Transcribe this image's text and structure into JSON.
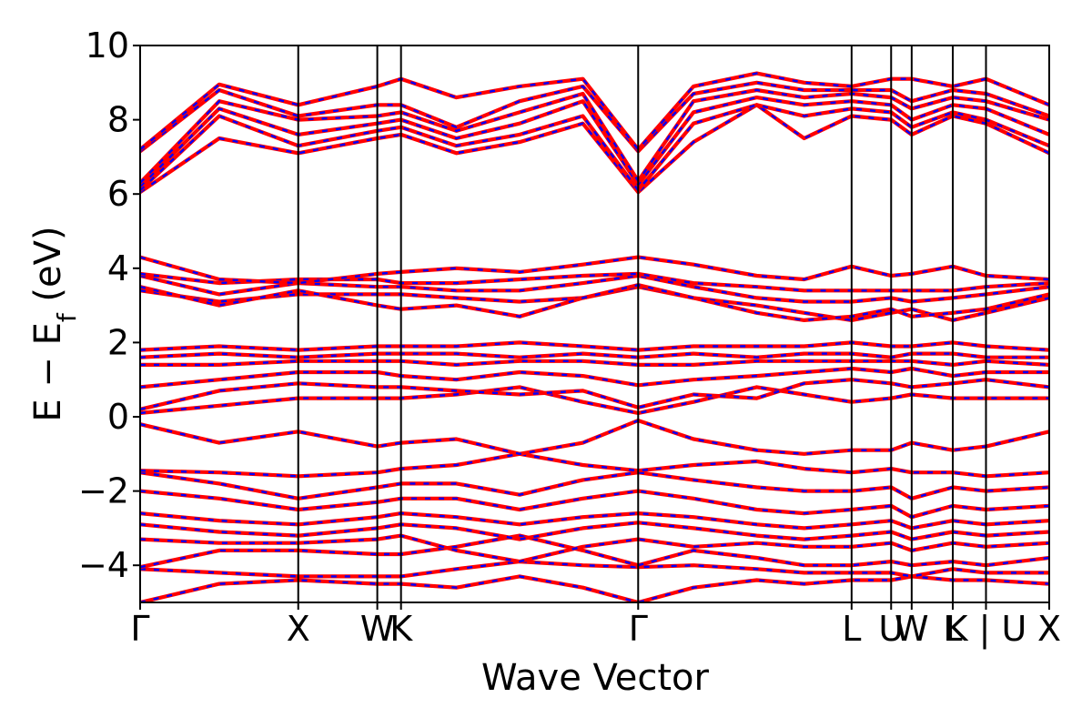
{
  "chart_data": {
    "type": "line",
    "xlabel": "Wave Vector",
    "ylabel_parts": {
      "main": "E − E",
      "sub": "f",
      "unit": " (eV)"
    },
    "ylim": [
      -5,
      10
    ],
    "yticks": [
      {
        "value": 10,
        "label": "10"
      },
      {
        "value": 8,
        "label": "8"
      },
      {
        "value": 6,
        "label": "6"
      },
      {
        "value": 4,
        "label": "4"
      },
      {
        "value": 2,
        "label": "2"
      },
      {
        "value": 0,
        "label": "0"
      },
      {
        "value": -2,
        "label": "−2"
      },
      {
        "value": -4,
        "label": "−4"
      }
    ],
    "xlim": [
      0,
      5.75
    ],
    "high_symmetry_points": [
      {
        "label": "Γ",
        "x": 0.0
      },
      {
        "label": "X",
        "x": 1.0
      },
      {
        "label": "W",
        "x": 1.5
      },
      {
        "label": "K",
        "x": 1.65
      },
      {
        "label": "Γ",
        "x": 3.15
      },
      {
        "label": "L",
        "x": 4.5
      },
      {
        "label": "U",
        "x": 4.75
      },
      {
        "label": "W",
        "x": 4.88
      },
      {
        "label": "L",
        "x": 5.14
      },
      {
        "label": "K | U",
        "x": 5.35
      },
      {
        "label": "X",
        "x": 5.75
      }
    ],
    "colors": {
      "band_solid": "#ff0000",
      "band_dashed": "#0000ff",
      "kpath_lines": "#000000"
    },
    "grid": false,
    "series": [
      {
        "x": [
          0,
          0.5,
          1.0,
          1.5,
          1.65,
          2.0,
          2.4,
          2.8,
          3.15,
          3.5,
          3.9,
          4.2,
          4.5,
          4.75,
          4.88,
          5.14,
          5.35,
          5.75
        ],
        "y": [
          -5.0,
          -4.5,
          -4.4,
          -4.5,
          -4.5,
          -4.6,
          -4.3,
          -4.6,
          -5.0,
          -4.6,
          -4.4,
          -4.5,
          -4.4,
          -4.4,
          -4.3,
          -4.4,
          -4.4,
          -4.5
        ]
      },
      {
        "x": [
          0,
          0.5,
          1.0,
          1.5,
          1.65,
          2.0,
          2.4,
          2.8,
          3.15,
          3.5,
          3.9,
          4.2,
          4.5,
          4.75,
          4.88,
          5.14,
          5.35,
          5.75
        ],
        "y": [
          -4.1,
          -4.2,
          -4.3,
          -4.3,
          -4.3,
          -4.1,
          -3.9,
          -4.0,
          -4.05,
          -4.0,
          -4.1,
          -4.2,
          -4.2,
          -4.2,
          -4.3,
          -4.1,
          -4.2,
          -4.2
        ]
      },
      {
        "x": [
          0,
          0.5,
          1.0,
          1.5,
          1.65,
          2.0,
          2.4,
          2.8,
          3.15,
          3.5,
          3.9,
          4.2,
          4.5,
          4.75,
          4.88,
          5.14,
          5.35,
          5.75
        ],
        "y": [
          -4.05,
          -3.6,
          -3.6,
          -3.7,
          -3.7,
          -3.5,
          -3.2,
          -3.6,
          -4.0,
          -3.6,
          -3.8,
          -4.0,
          -4.0,
          -3.9,
          -4.0,
          -3.9,
          -4.0,
          -3.8
        ]
      },
      {
        "x": [
          0,
          0.5,
          1.0,
          1.5,
          1.65,
          2.0,
          2.4,
          2.8,
          3.15,
          3.5,
          3.9,
          4.2,
          4.5,
          4.75,
          4.88,
          5.14,
          5.35,
          5.75
        ],
        "y": [
          -3.3,
          -3.4,
          -3.4,
          -3.3,
          -3.2,
          -3.6,
          -3.9,
          -3.5,
          -3.3,
          -3.5,
          -3.4,
          -3.5,
          -3.5,
          -3.4,
          -3.6,
          -3.4,
          -3.5,
          -3.4
        ]
      },
      {
        "x": [
          0,
          0.5,
          1.0,
          1.5,
          1.65,
          2.0,
          2.4,
          2.8,
          3.15,
          3.5,
          3.9,
          4.2,
          4.5,
          4.75,
          4.88,
          5.14,
          5.35,
          5.75
        ],
        "y": [
          -2.9,
          -3.1,
          -3.2,
          -3.0,
          -2.9,
          -3.0,
          -3.3,
          -3.0,
          -2.85,
          -3.0,
          -3.2,
          -3.3,
          -3.2,
          -3.1,
          -3.3,
          -3.1,
          -3.2,
          -3.1
        ]
      },
      {
        "x": [
          0,
          0.5,
          1.0,
          1.5,
          1.65,
          2.0,
          2.4,
          2.8,
          3.15,
          3.5,
          3.9,
          4.2,
          4.5,
          4.75,
          4.88,
          5.14,
          5.35,
          5.75
        ],
        "y": [
          -2.6,
          -2.8,
          -2.9,
          -2.7,
          -2.6,
          -2.7,
          -2.9,
          -2.7,
          -2.6,
          -2.7,
          -2.9,
          -3.0,
          -2.9,
          -2.8,
          -3.0,
          -2.8,
          -2.9,
          -2.8
        ]
      },
      {
        "x": [
          0,
          0.5,
          1.0,
          1.5,
          1.65,
          2.0,
          2.4,
          2.8,
          3.15,
          3.5,
          3.9,
          4.2,
          4.5,
          4.75,
          4.88,
          5.14,
          5.35,
          5.75
        ],
        "y": [
          -2.0,
          -2.2,
          -2.5,
          -2.3,
          -2.2,
          -2.2,
          -2.5,
          -2.2,
          -2.0,
          -2.2,
          -2.5,
          -2.6,
          -2.5,
          -2.4,
          -2.7,
          -2.4,
          -2.5,
          -2.4
        ]
      },
      {
        "x": [
          0,
          0.5,
          1.0,
          1.5,
          1.65,
          2.0,
          2.4,
          2.8,
          3.15,
          3.5,
          3.9,
          4.2,
          4.5,
          4.75,
          4.88,
          5.14,
          5.35,
          5.75
        ],
        "y": [
          -1.5,
          -1.8,
          -2.2,
          -1.9,
          -1.8,
          -1.8,
          -2.1,
          -1.7,
          -1.5,
          -1.7,
          -1.9,
          -2.0,
          -2.0,
          -1.9,
          -2.2,
          -1.9,
          -2.0,
          -1.9
        ]
      },
      {
        "x": [
          0,
          0.5,
          1.0,
          1.5,
          1.65,
          2.0,
          2.4,
          2.8,
          3.15,
          3.5,
          3.9,
          4.2,
          4.5,
          4.75,
          4.88,
          5.14,
          5.35,
          5.75
        ],
        "y": [
          -1.45,
          -1.5,
          -1.6,
          -1.5,
          -1.4,
          -1.3,
          -1.0,
          -1.3,
          -1.45,
          -1.3,
          -1.2,
          -1.4,
          -1.5,
          -1.4,
          -1.5,
          -1.5,
          -1.6,
          -1.5
        ]
      },
      {
        "x": [
          0,
          0.5,
          1.0,
          1.5,
          1.65,
          2.0,
          2.4,
          2.8,
          3.15,
          3.5,
          3.9,
          4.2,
          4.5,
          4.75,
          4.88,
          5.14,
          5.35,
          5.75
        ],
        "y": [
          -0.2,
          -0.7,
          -0.4,
          -0.8,
          -0.7,
          -0.6,
          -1.0,
          -0.7,
          -0.1,
          -0.6,
          -0.9,
          -1.0,
          -0.9,
          -0.9,
          -0.7,
          -0.9,
          -0.8,
          -0.4
        ]
      },
      {
        "x": [
          0,
          0.5,
          1.0,
          1.5,
          1.65,
          2.0,
          2.4,
          2.8,
          3.15,
          3.5,
          3.9,
          4.2,
          4.5,
          4.75,
          4.88,
          5.14,
          5.35,
          5.75
        ],
        "y": [
          0.1,
          0.3,
          0.5,
          0.5,
          0.5,
          0.6,
          0.8,
          0.4,
          0.1,
          0.4,
          0.8,
          0.6,
          0.4,
          0.5,
          0.6,
          0.5,
          0.5,
          0.5
        ]
      },
      {
        "x": [
          0,
          0.5,
          1.0,
          1.5,
          1.65,
          2.0,
          2.4,
          2.8,
          3.15,
          3.5,
          3.9,
          4.2,
          4.5,
          4.75,
          4.88,
          5.14,
          5.35,
          5.75
        ],
        "y": [
          0.2,
          0.7,
          0.9,
          0.8,
          0.8,
          0.7,
          0.6,
          0.7,
          0.25,
          0.6,
          0.5,
          0.9,
          1.0,
          0.9,
          0.8,
          0.9,
          1.0,
          0.8
        ]
      },
      {
        "x": [
          0,
          0.5,
          1.0,
          1.5,
          1.65,
          2.0,
          2.4,
          2.8,
          3.15,
          3.5,
          3.9,
          4.2,
          4.5,
          4.75,
          4.88,
          5.14,
          5.35,
          5.75
        ],
        "y": [
          0.8,
          1.0,
          1.2,
          1.2,
          1.1,
          1.0,
          1.2,
          1.1,
          0.85,
          1.0,
          1.1,
          1.2,
          1.3,
          1.2,
          1.3,
          1.1,
          1.2,
          1.2
        ]
      },
      {
        "x": [
          0,
          0.5,
          1.0,
          1.5,
          1.65,
          2.0,
          2.4,
          2.8,
          3.15,
          3.5,
          3.9,
          4.2,
          4.5,
          4.75,
          4.88,
          5.14,
          5.35,
          5.75
        ],
        "y": [
          1.4,
          1.4,
          1.5,
          1.5,
          1.5,
          1.4,
          1.5,
          1.5,
          1.4,
          1.4,
          1.5,
          1.5,
          1.5,
          1.5,
          1.5,
          1.4,
          1.5,
          1.4
        ]
      },
      {
        "x": [
          0,
          0.5,
          1.0,
          1.5,
          1.65,
          2.0,
          2.4,
          2.8,
          3.15,
          3.5,
          3.9,
          4.2,
          4.5,
          4.75,
          4.88,
          5.14,
          5.35,
          5.75
        ],
        "y": [
          1.6,
          1.7,
          1.6,
          1.7,
          1.7,
          1.7,
          1.6,
          1.7,
          1.6,
          1.7,
          1.6,
          1.7,
          1.7,
          1.6,
          1.7,
          1.7,
          1.6,
          1.6
        ]
      },
      {
        "x": [
          0,
          0.5,
          1.0,
          1.5,
          1.65,
          2.0,
          2.4,
          2.8,
          3.15,
          3.5,
          3.9,
          4.2,
          4.5,
          4.75,
          4.88,
          5.14,
          5.35,
          5.75
        ],
        "y": [
          1.8,
          1.9,
          1.8,
          1.9,
          1.9,
          1.9,
          2.0,
          1.9,
          1.8,
          1.9,
          1.9,
          1.9,
          2.0,
          1.9,
          1.9,
          2.0,
          1.9,
          1.8
        ]
      },
      {
        "x": [
          0,
          0.5,
          1.0,
          1.5,
          1.65,
          2.0,
          2.4,
          2.8,
          3.15,
          3.5,
          3.9,
          4.2,
          4.5,
          4.75,
          4.88,
          5.14,
          5.35,
          5.75
        ],
        "y": [
          3.4,
          3.1,
          3.3,
          3.3,
          3.3,
          3.2,
          3.1,
          3.2,
          3.5,
          3.2,
          3.0,
          2.8,
          2.6,
          2.8,
          2.9,
          2.6,
          2.8,
          3.2
        ]
      },
      {
        "x": [
          0,
          0.5,
          1.0,
          1.5,
          1.65,
          2.0,
          2.4,
          2.8,
          3.15,
          3.5,
          3.9,
          4.2,
          4.5,
          4.75,
          4.88,
          5.14,
          5.35,
          5.75
        ],
        "y": [
          3.5,
          3.0,
          3.4,
          3.0,
          2.9,
          3.0,
          2.7,
          3.2,
          3.55,
          3.2,
          2.8,
          2.6,
          2.7,
          2.9,
          2.7,
          2.8,
          2.9,
          3.3
        ]
      },
      {
        "x": [
          0,
          0.5,
          1.0,
          1.5,
          1.65,
          2.0,
          2.4,
          2.8,
          3.15,
          3.5,
          3.9,
          4.2,
          4.5,
          4.75,
          4.88,
          5.14,
          5.35,
          5.75
        ],
        "y": [
          3.8,
          3.3,
          3.6,
          3.5,
          3.5,
          3.4,
          3.4,
          3.6,
          3.8,
          3.5,
          3.2,
          3.1,
          3.1,
          3.2,
          3.1,
          3.2,
          3.3,
          3.5
        ]
      },
      {
        "x": [
          0,
          0.5,
          1.0,
          1.5,
          1.65,
          2.0,
          2.4,
          2.8,
          3.15,
          3.5,
          3.9,
          4.2,
          4.5,
          4.75,
          4.88,
          5.14,
          5.35,
          5.75
        ],
        "y": [
          3.85,
          3.6,
          3.7,
          3.7,
          3.6,
          3.6,
          3.7,
          3.8,
          3.85,
          3.6,
          3.5,
          3.4,
          3.4,
          3.4,
          3.4,
          3.4,
          3.5,
          3.6
        ]
      },
      {
        "x": [
          0,
          0.5,
          1.0,
          1.5,
          1.65,
          2.0,
          2.4,
          2.8,
          3.15,
          3.5,
          3.9,
          4.2,
          4.5,
          4.75,
          4.88,
          5.14,
          5.35,
          5.75
        ],
        "y": [
          4.3,
          3.7,
          3.6,
          3.85,
          3.9,
          4.0,
          3.9,
          4.1,
          4.3,
          4.1,
          3.8,
          3.7,
          4.05,
          3.8,
          3.85,
          4.05,
          3.8,
          3.7
        ]
      },
      {
        "x": [
          0,
          0.5,
          1.0,
          1.5,
          1.65,
          2.0,
          2.4,
          2.8,
          3.15,
          3.5,
          3.9,
          4.2,
          4.5,
          4.75,
          4.88,
          5.14,
          5.35,
          5.75
        ],
        "y": [
          6.05,
          7.5,
          7.1,
          7.5,
          7.6,
          7.1,
          7.4,
          7.9,
          6.05,
          7.4,
          8.4,
          7.5,
          8.1,
          8.0,
          7.6,
          8.1,
          7.9,
          7.1
        ]
      },
      {
        "x": [
          0,
          0.5,
          1.0,
          1.5,
          1.65,
          2.0,
          2.4,
          2.8,
          3.15,
          3.5,
          3.9,
          4.2,
          4.5,
          4.75,
          4.88,
          5.14,
          5.35,
          5.75
        ],
        "y": [
          6.1,
          8.1,
          7.3,
          7.7,
          7.8,
          7.3,
          7.6,
          8.1,
          6.1,
          7.9,
          8.4,
          8.1,
          8.3,
          8.2,
          7.8,
          8.2,
          8.0,
          7.3
        ]
      },
      {
        "x": [
          0,
          0.5,
          1.0,
          1.5,
          1.65,
          2.0,
          2.4,
          2.8,
          3.15,
          3.5,
          3.9,
          4.2,
          4.5,
          4.75,
          4.88,
          5.14,
          5.35,
          5.75
        ],
        "y": [
          6.2,
          8.3,
          7.6,
          7.9,
          8.0,
          7.5,
          7.9,
          8.5,
          6.25,
          8.2,
          8.6,
          8.4,
          8.5,
          8.4,
          8.0,
          8.4,
          8.3,
          7.6
        ]
      },
      {
        "x": [
          0,
          0.5,
          1.0,
          1.5,
          1.65,
          2.0,
          2.4,
          2.8,
          3.15,
          3.5,
          3.9,
          4.2,
          4.5,
          4.75,
          4.88,
          5.14,
          5.35,
          5.75
        ],
        "y": [
          6.3,
          8.5,
          8.0,
          8.1,
          8.2,
          7.7,
          8.2,
          8.7,
          6.35,
          8.5,
          8.8,
          8.6,
          8.7,
          8.6,
          8.3,
          8.6,
          8.5,
          8.0
        ]
      },
      {
        "x": [
          0,
          0.5,
          1.0,
          1.5,
          1.65,
          2.0,
          2.4,
          2.8,
          3.15,
          3.5,
          3.9,
          4.2,
          4.5,
          4.75,
          4.88,
          5.14,
          5.35,
          5.75
        ],
        "y": [
          7.15,
          8.8,
          8.1,
          8.4,
          8.4,
          7.8,
          8.5,
          8.9,
          7.15,
          8.7,
          9.0,
          8.8,
          8.8,
          8.8,
          8.5,
          8.8,
          8.7,
          8.1
        ]
      },
      {
        "x": [
          0,
          0.5,
          1.0,
          1.5,
          1.65,
          2.0,
          2.4,
          2.8,
          3.15,
          3.5,
          3.9,
          4.2,
          4.5,
          4.75,
          4.88,
          5.14,
          5.35,
          5.75
        ],
        "y": [
          7.2,
          8.95,
          8.4,
          8.9,
          9.1,
          8.6,
          8.9,
          9.1,
          7.2,
          8.9,
          9.25,
          9.0,
          8.9,
          9.1,
          9.1,
          8.9,
          9.1,
          8.4
        ]
      }
    ]
  }
}
